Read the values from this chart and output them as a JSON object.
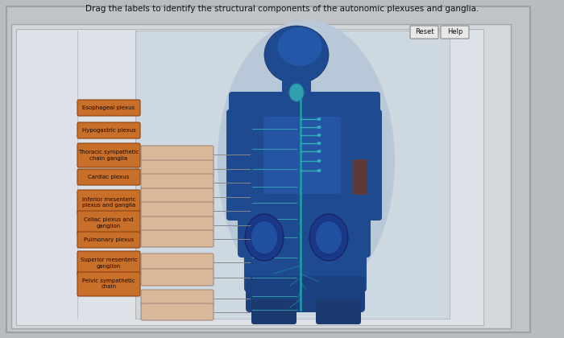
{
  "title": "Drag the labels to identify the structural components of the autonomic plexuses and ganglia.",
  "title_fontsize": 7.5,
  "bg_outer": "#b8bcc0",
  "bg_frame_outer": "#c8ccd0",
  "bg_frame_inner": "#d8dde2",
  "bg_content": "#dde2e8",
  "label_buttons": [
    "Esophageal plexus",
    "Hypogastric plexus",
    "Thoracic sympathetic\nchain ganglia",
    "Cardiac plexus",
    "Inferior mesenteric\nplexus and ganglia",
    "Celiac plexus and\nganglion",
    "Pulmonary plexus",
    "Superior mesenteric\nganglion",
    "Pelvic sympathetic\nchain"
  ],
  "label_btn_color": "#c8702a",
  "label_btn_border": "#8b4010",
  "label_btn_text": "#1a0800",
  "answer_box_color": "#d9b89a",
  "answer_box_border": "#a08070",
  "reset_text": "Reset",
  "help_text": "Help",
  "body_bg": "#c8d4dc",
  "body_blue_dark": "#1a3a70",
  "body_blue_mid": "#1e50a0",
  "body_blue_light": "#3070c0",
  "body_teal": "#20a0a8",
  "body_arm_shadow": "#6b3520"
}
